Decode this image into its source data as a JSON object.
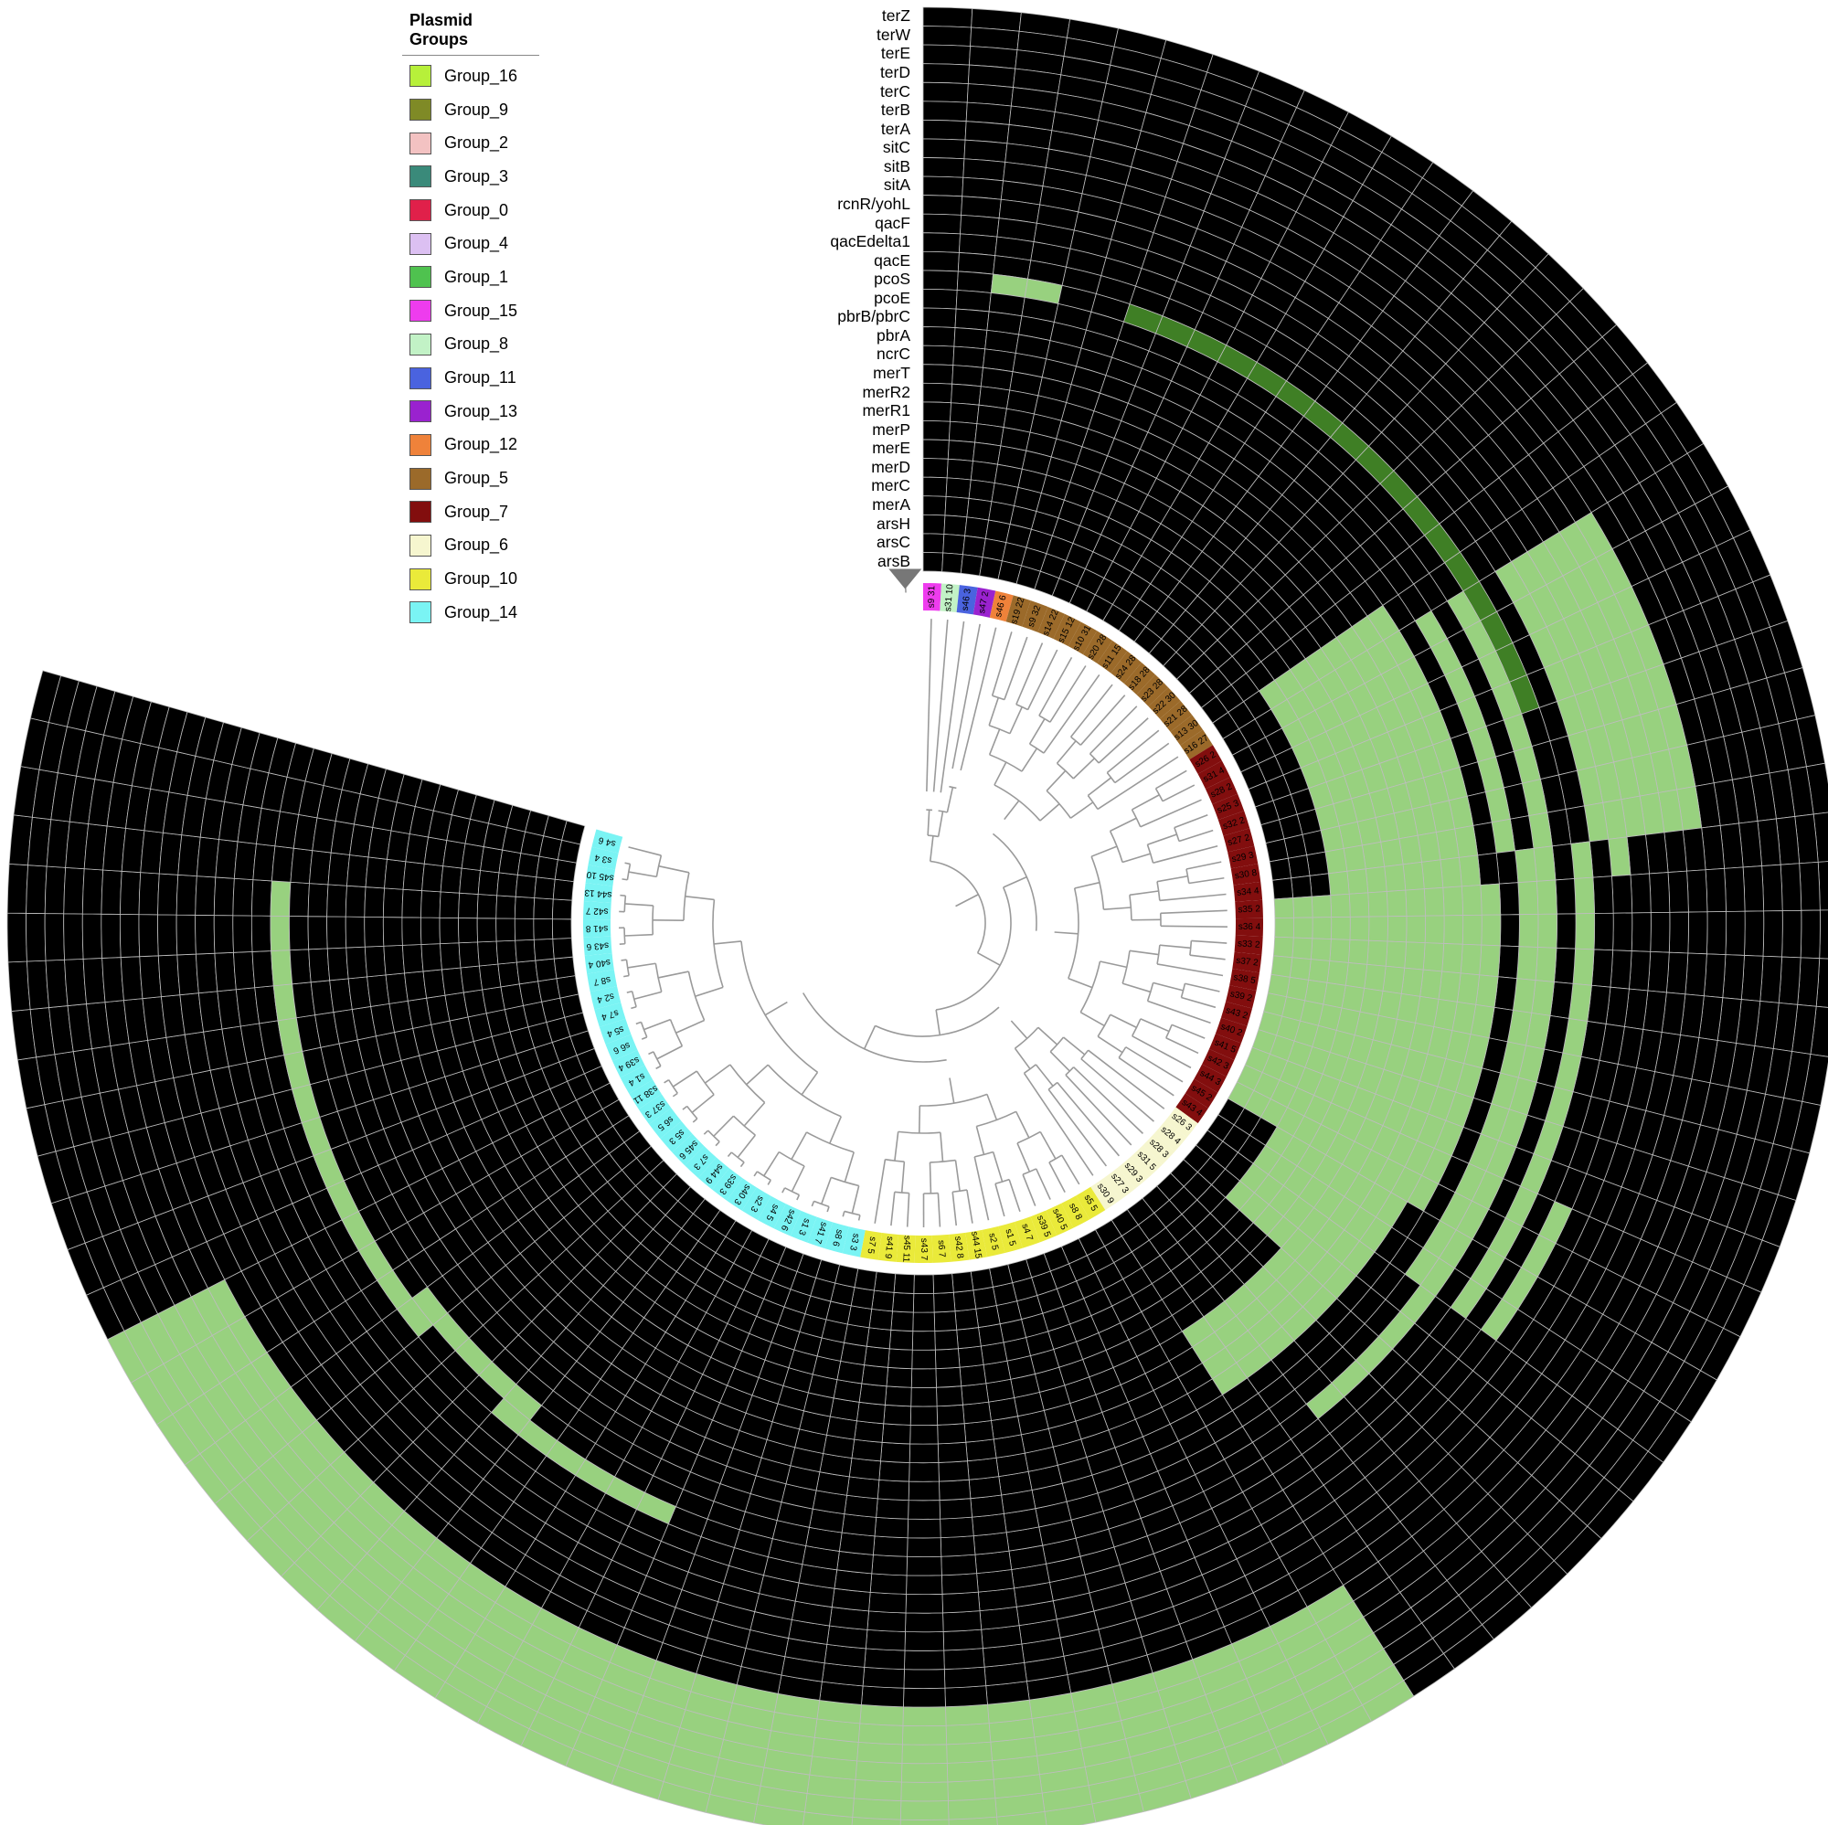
{
  "legend": {
    "title": "Plasmid Groups",
    "items": [
      {
        "label": "Group_16",
        "color": "#b7f03a"
      },
      {
        "label": "Group_9",
        "color": "#7f8a26"
      },
      {
        "label": "Group_2",
        "color": "#f3c2c2"
      },
      {
        "label": "Group_3",
        "color": "#3a8a7a"
      },
      {
        "label": "Group_0",
        "color": "#e0204a"
      },
      {
        "label": "Group_4",
        "color": "#dcc0f2"
      },
      {
        "label": "Group_1",
        "color": "#4fc24f"
      },
      {
        "label": "Group_15",
        "color": "#ee3cee"
      },
      {
        "label": "Group_8",
        "color": "#c2f2c6"
      },
      {
        "label": "Group_11",
        "color": "#4a63df"
      },
      {
        "label": "Group_13",
        "color": "#9a22cf"
      },
      {
        "label": "Group_12",
        "color": "#ef823a"
      },
      {
        "label": "Group_5",
        "color": "#9b6a2a"
      },
      {
        "label": "Group_7",
        "color": "#820e0e"
      },
      {
        "label": "Group_6",
        "color": "#f6f6cf"
      },
      {
        "label": "Group_10",
        "color": "#eaea3a"
      },
      {
        "label": "Group_14",
        "color": "#7af4f4"
      }
    ]
  },
  "genes": [
    "terZ",
    "terW",
    "terE",
    "terD",
    "terC",
    "terB",
    "terA",
    "sitC",
    "sitB",
    "sitA",
    "rcnR/yohL",
    "qacF",
    "qacEdelta1",
    "qacE",
    "pcoS",
    "pcoE",
    "pbrB/pbrC",
    "pbrA",
    "ncrC",
    "merT",
    "merR2",
    "merR1",
    "merP",
    "merE",
    "merD",
    "merC",
    "merA",
    "arsH",
    "arsC",
    "arsB"
  ],
  "tips": [
    {
      "label": "s9 31",
      "group": "Group_15"
    },
    {
      "label": "s31 10",
      "group": "Group_8"
    },
    {
      "label": "s46 3",
      "group": "Group_11"
    },
    {
      "label": "s47 2",
      "group": "Group_13"
    },
    {
      "label": "s46 6",
      "group": "Group_12"
    },
    {
      "label": "s19 22",
      "group": "Group_5"
    },
    {
      "label": "s9 32",
      "group": "Group_5"
    },
    {
      "label": "s14 22",
      "group": "Group_5"
    },
    {
      "label": "s15 12",
      "group": "Group_5"
    },
    {
      "label": "s10 31",
      "group": "Group_5"
    },
    {
      "label": "s20 28",
      "group": "Group_5"
    },
    {
      "label": "s11 15",
      "group": "Group_5"
    },
    {
      "label": "s24 28",
      "group": "Group_5"
    },
    {
      "label": "s18 28",
      "group": "Group_5"
    },
    {
      "label": "s23 28",
      "group": "Group_5"
    },
    {
      "label": "s22 30",
      "group": "Group_5"
    },
    {
      "label": "s21 28",
      "group": "Group_5"
    },
    {
      "label": "s13 30",
      "group": "Group_5"
    },
    {
      "label": "s16 27",
      "group": "Group_5"
    },
    {
      "label": "s26 2",
      "group": "Group_7"
    },
    {
      "label": "s31 4",
      "group": "Group_7"
    },
    {
      "label": "s28 2",
      "group": "Group_7"
    },
    {
      "label": "s25 3",
      "group": "Group_7"
    },
    {
      "label": "s32 2",
      "group": "Group_7"
    },
    {
      "label": "s27 2",
      "group": "Group_7"
    },
    {
      "label": "s29 3",
      "group": "Group_7"
    },
    {
      "label": "s30 8",
      "group": "Group_7"
    },
    {
      "label": "s34 4",
      "group": "Group_7"
    },
    {
      "label": "s35 2",
      "group": "Group_7"
    },
    {
      "label": "s36 4",
      "group": "Group_7"
    },
    {
      "label": "s33 2",
      "group": "Group_7"
    },
    {
      "label": "s37 2",
      "group": "Group_7"
    },
    {
      "label": "s38 5",
      "group": "Group_7"
    },
    {
      "label": "s39 2",
      "group": "Group_7"
    },
    {
      "label": "s43 2",
      "group": "Group_7"
    },
    {
      "label": "s40 2",
      "group": "Group_7"
    },
    {
      "label": "s41 5",
      "group": "Group_7"
    },
    {
      "label": "s42 3",
      "group": "Group_7"
    },
    {
      "label": "s44 3",
      "group": "Group_7"
    },
    {
      "label": "s45 2",
      "group": "Group_7"
    },
    {
      "label": "s43 4",
      "group": "Group_7"
    },
    {
      "label": "s26 3",
      "group": "Group_6"
    },
    {
      "label": "s28 4",
      "group": "Group_6"
    },
    {
      "label": "s28 3",
      "group": "Group_6"
    },
    {
      "label": "s31 5",
      "group": "Group_6"
    },
    {
      "label": "s29 3",
      "group": "Group_6"
    },
    {
      "label": "s27 3",
      "group": "Group_6"
    },
    {
      "label": "s30 9",
      "group": "Group_6"
    },
    {
      "label": "s5 5",
      "group": "Group_10"
    },
    {
      "label": "s8 8",
      "group": "Group_10"
    },
    {
      "label": "s40 5",
      "group": "Group_10"
    },
    {
      "label": "s39 5",
      "group": "Group_10"
    },
    {
      "label": "s4 7",
      "group": "Group_10"
    },
    {
      "label": "s1 5",
      "group": "Group_10"
    },
    {
      "label": "s2 5",
      "group": "Group_10"
    },
    {
      "label": "s44 15",
      "group": "Group_10"
    },
    {
      "label": "s42 8",
      "group": "Group_10"
    },
    {
      "label": "s6 7",
      "group": "Group_10"
    },
    {
      "label": "s43 7",
      "group": "Group_10"
    },
    {
      "label": "s45 11",
      "group": "Group_10"
    },
    {
      "label": "s41 9",
      "group": "Group_10"
    },
    {
      "label": "s7 5",
      "group": "Group_10"
    },
    {
      "label": "s3 3",
      "group": "Group_14"
    },
    {
      "label": "s8 6",
      "group": "Group_14"
    },
    {
      "label": "s41 7",
      "group": "Group_14"
    },
    {
      "label": "s1 3",
      "group": "Group_14"
    },
    {
      "label": "s42 6",
      "group": "Group_14"
    },
    {
      "label": "s4 5",
      "group": "Group_14"
    },
    {
      "label": "s2 3",
      "group": "Group_14"
    },
    {
      "label": "s40 3",
      "group": "Group_14"
    },
    {
      "label": "s39 3",
      "group": "Group_14"
    },
    {
      "label": "s44 9",
      "group": "Group_14"
    },
    {
      "label": "s7 3",
      "group": "Group_14"
    },
    {
      "label": "s45 6",
      "group": "Group_14"
    },
    {
      "label": "s5 3",
      "group": "Group_14"
    },
    {
      "label": "s6 5",
      "group": "Group_14"
    },
    {
      "label": "s37 3",
      "group": "Group_14"
    },
    {
      "label": "s38 11",
      "group": "Group_14"
    },
    {
      "label": "s1 4",
      "group": "Group_14"
    },
    {
      "label": "s39 4",
      "group": "Group_14"
    },
    {
      "label": "s6 6",
      "group": "Group_14"
    },
    {
      "label": "s5 4",
      "group": "Group_14"
    },
    {
      "label": "s7 4",
      "group": "Group_14"
    },
    {
      "label": "s2 4",
      "group": "Group_14"
    },
    {
      "label": "s8 7",
      "group": "Group_14"
    },
    {
      "label": "s40 4",
      "group": "Group_14"
    },
    {
      "label": "s43 6",
      "group": "Group_14"
    },
    {
      "label": "s41 8",
      "group": "Group_14"
    },
    {
      "label": "s42 7",
      "group": "Group_14"
    },
    {
      "label": "s44 13",
      "group": "Group_14"
    },
    {
      "label": "s45 10",
      "group": "Group_14"
    },
    {
      "label": "s3 4",
      "group": "Group_14"
    },
    {
      "label": "s4 6",
      "group": "Group_14"
    }
  ],
  "presence": [
    {
      "gene": "pcoS",
      "from": "s46 3",
      "to": "s47 2"
    },
    {
      "gene": "pcoS",
      "from": "s9 32",
      "to": "s25 3"
    },
    {
      "gene": "rcnR/yohL",
      "from": "s26 2",
      "to": "s30 8"
    },
    {
      "gene": "sitA",
      "from": "s26 2",
      "to": "s30 8"
    },
    {
      "gene": "sitB",
      "from": "s26 2",
      "to": "s30 8"
    },
    {
      "gene": "sitC",
      "from": "s26 2",
      "to": "s30 8"
    },
    {
      "gene": "qacF",
      "from": "s26 2",
      "to": "s34 4"
    },
    {
      "gene": "pcoE",
      "from": "s26 2",
      "to": "s29 3"
    },
    {
      "gene": "pbrA",
      "from": "s26 2",
      "to": "s30 8"
    },
    {
      "gene": "merT",
      "from": "s16 27",
      "to": "s30 9"
    },
    {
      "gene": "merR2",
      "from": "s16 27",
      "to": "s30 9"
    },
    {
      "gene": "merR1",
      "from": "s16 27",
      "to": "s30 9"
    },
    {
      "gene": "merP",
      "from": "s16 27",
      "to": "s30 9"
    },
    {
      "gene": "merE",
      "from": "s16 27",
      "to": "s28 4"
    },
    {
      "gene": "merD",
      "from": "s16 27",
      "to": "s28 4"
    },
    {
      "gene": "merC",
      "from": "s16 27",
      "to": "s28 4"
    },
    {
      "gene": "merA",
      "from": "s16 27",
      "to": "s28 4"
    },
    {
      "gene": "arsB",
      "from": "s35 2",
      "to": "s44 3"
    },
    {
      "gene": "arsC",
      "from": "s35 2",
      "to": "s44 3"
    },
    {
      "gene": "arsH",
      "from": "s35 2",
      "to": "s44 3"
    },
    {
      "gene": "qacEdelta1",
      "from": "s26 2",
      "to": "s30 8"
    },
    {
      "gene": "qacE",
      "from": "s34 4",
      "to": "s43 4"
    },
    {
      "gene": "pbrB/pbrC",
      "from": "s34 4",
      "to": "s43 4"
    },
    {
      "gene": "ncrC",
      "from": "s35 2",
      "to": "s44 3"
    },
    {
      "gene": "terZ",
      "from": "s1 4",
      "to": "s5 5"
    },
    {
      "gene": "terW",
      "from": "s1 4",
      "to": "s5 5"
    },
    {
      "gene": "terE",
      "from": "s1 4",
      "to": "s5 5"
    },
    {
      "gene": "terD",
      "from": "s1 4",
      "to": "s5 5"
    },
    {
      "gene": "terC",
      "from": "s1 4",
      "to": "s5 5"
    },
    {
      "gene": "terB",
      "from": "s1 4",
      "to": "s5 5"
    },
    {
      "gene": "terA",
      "from": "s1 4",
      "to": "s5 5"
    },
    {
      "gene": "qacF",
      "from": "s42 3",
      "to": "s43 4"
    },
    {
      "gene": "pcoS",
      "from": "s42 6",
      "to": "s44 9"
    },
    {
      "gene": "pcoS",
      "from": "s6 5",
      "to": "s42 7"
    },
    {
      "gene": "pcoE",
      "from": "s44 9",
      "to": "s7 3"
    },
    {
      "gene": "pcoE",
      "from": "s45 6",
      "to": "s6 5"
    }
  ],
  "colors": {
    "absent": "#000000",
    "present": "#98d17f",
    "present_dark": "#3f7f25",
    "branch": "#9a9a9a",
    "grid": "#9a9a9a",
    "root_marker": "#777777"
  }
}
